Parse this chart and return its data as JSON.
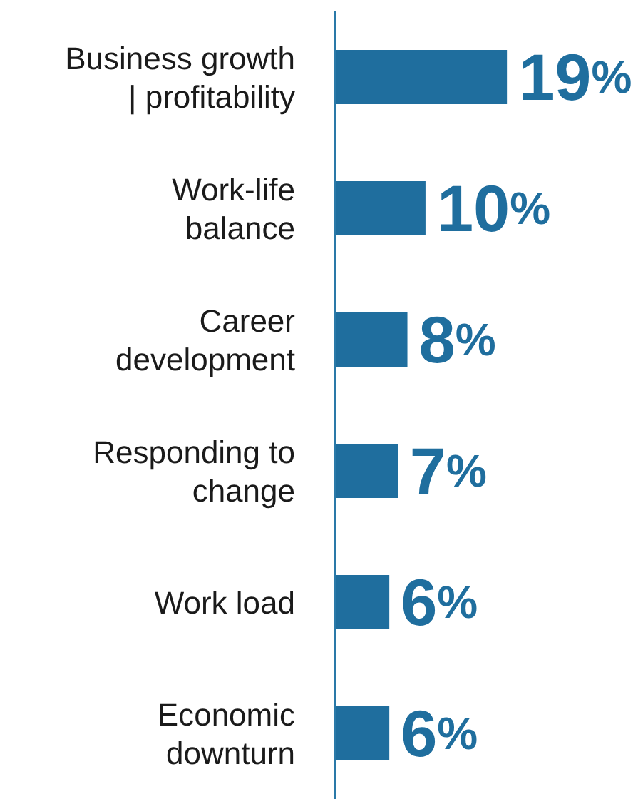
{
  "chart_data": {
    "type": "bar",
    "orientation": "horizontal",
    "categories": [
      "Business growth | profitability",
      "Work-life balance",
      "Career development",
      "Responding to change",
      "Work load",
      "Economic downturn"
    ],
    "values": [
      19,
      10,
      8,
      7,
      6,
      6
    ],
    "value_labels": [
      "19%",
      "10%",
      "8%",
      "7%",
      "6%",
      "6%"
    ],
    "color": "#1f6e9e",
    "grid": false,
    "legend": false
  }
}
